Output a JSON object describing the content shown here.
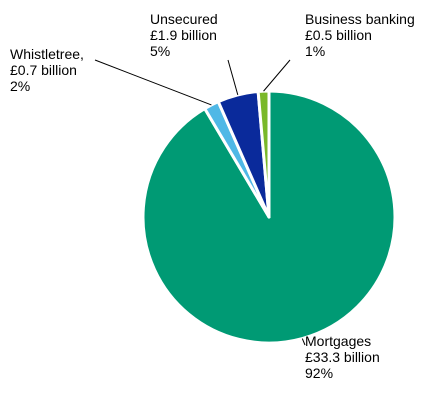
{
  "chart_data": {
    "type": "pie",
    "unit": "£ billion",
    "start_angle_deg": 0,
    "direction": "clockwise",
    "legend": "none",
    "slices": [
      {
        "name": "Mortgages",
        "value": 33.3,
        "amount_label": "£33.3 billion",
        "percent_label": "92%",
        "color": "#009a74"
      },
      {
        "name": "Whistletree,",
        "value": 0.7,
        "amount_label": "£0.7 billion",
        "percent_label": "2%",
        "color": "#4fb8e6"
      },
      {
        "name": "Unsecured",
        "value": 1.9,
        "amount_label": "£1.9 billion",
        "percent_label": "5%",
        "color": "#0a2a9b"
      },
      {
        "name": "Business banking",
        "value": 0.5,
        "amount_label": "£0.5 billion",
        "percent_label": "1%",
        "color": "#7ab829"
      }
    ]
  }
}
